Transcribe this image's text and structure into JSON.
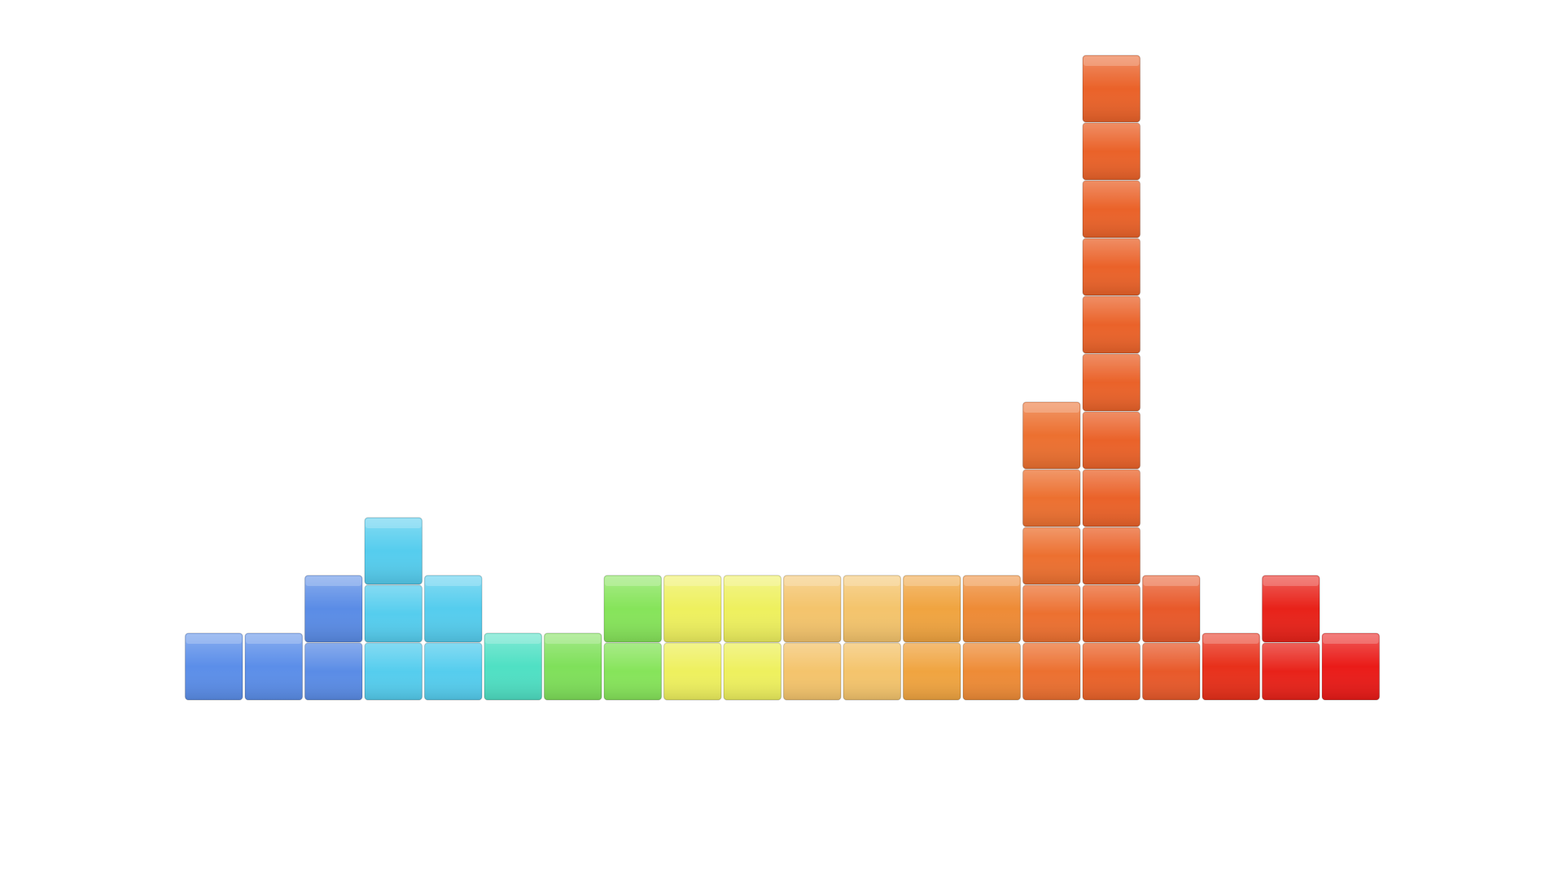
{
  "chart_data": {
    "type": "bar",
    "values": [
      1,
      1,
      2,
      3,
      2,
      1,
      1,
      2,
      2,
      2,
      2,
      2,
      2,
      2,
      5,
      11,
      2,
      1,
      2,
      1
    ],
    "colors": [
      "#5b8ee9",
      "#5b8ee9",
      "#5a8ce6",
      "#55cdee",
      "#55cdee",
      "#4fe0c4",
      "#7fe05a",
      "#86e45a",
      "#eef05e",
      "#eef05e",
      "#f4c46c",
      "#f4c46c",
      "#f0a440",
      "#ee8b36",
      "#ec7030",
      "#ea6229",
      "#e8592a",
      "#e8301a",
      "#e82219",
      "#ea1b18"
    ]
  }
}
